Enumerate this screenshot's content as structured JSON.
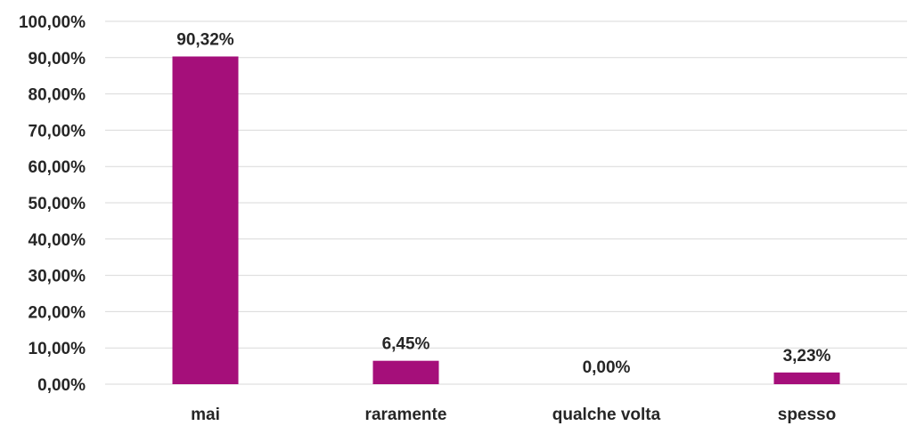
{
  "colors": {
    "bar": "#a50f7a",
    "grid": "#d9d9d9",
    "text": "#262626"
  },
  "chart_data": {
    "type": "bar",
    "title": "",
    "xlabel": "",
    "ylabel": "",
    "categories": [
      "mai",
      "raramente",
      "qualche volta",
      "spesso"
    ],
    "values": [
      90.32,
      6.45,
      0.0,
      3.23
    ],
    "value_labels": [
      "90,32%",
      "6,45%",
      "0,00%",
      "3,23%"
    ],
    "ylim": [
      0,
      100
    ],
    "yticks": [
      0,
      10,
      20,
      30,
      40,
      50,
      60,
      70,
      80,
      90,
      100
    ],
    "ytick_labels": [
      "0,00%",
      "10,00%",
      "20,00%",
      "30,00%",
      "40,00%",
      "50,00%",
      "60,00%",
      "70,00%",
      "80,00%",
      "90,00%",
      "100,00%"
    ],
    "grid": true,
    "legend": "none"
  }
}
